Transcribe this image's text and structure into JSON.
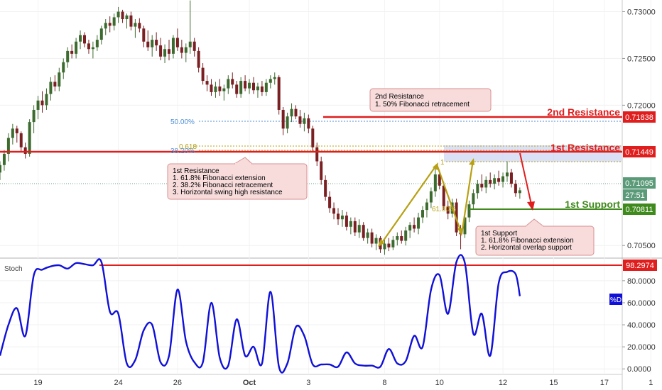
{
  "colors": {
    "up": "#3d6b2f",
    "down": "#7a1f22",
    "resistance": "#e01e1e",
    "support": "#3f8a1c",
    "fib": "#b8a012",
    "fib_blue": "#4f8fd4",
    "stoch": "#1010d8",
    "callout_fill": "#f8dcdc",
    "callout_stroke": "#d78f8f",
    "zone": "#bcc8ee"
  },
  "chart_data": [
    {
      "type": "candlestick",
      "title": "",
      "ylim": [
        0.70365,
        0.73125
      ],
      "y_ticks": [
        {
          "value": 0.73,
          "label": "0.73000"
        },
        {
          "value": 0.725,
          "label": "0.72500"
        },
        {
          "value": 0.72,
          "label": "0.72000"
        },
        {
          "value": 0.705,
          "label": "0.70500"
        }
      ],
      "x_ticks": [
        {
          "value": 4.5,
          "label": "19"
        },
        {
          "value": 14,
          "label": "24"
        },
        {
          "value": 21,
          "label": "26"
        },
        {
          "value": 29.5,
          "label": "Oct"
        },
        {
          "value": 36.5,
          "label": "3"
        },
        {
          "value": 45.5,
          "label": "8"
        },
        {
          "value": 52,
          "label": "10"
        },
        {
          "value": 59.5,
          "label": "12"
        },
        {
          "value": 65.5,
          "label": "15"
        },
        {
          "value": 71.5,
          "label": "17"
        },
        {
          "value": 77,
          "label": "1"
        }
      ],
      "candles": [
        [
          0,
          0.7128,
          0.714,
          0.712,
          0.7136
        ],
        [
          0.5,
          0.7136,
          0.7152,
          0.713,
          0.7148
        ],
        [
          1,
          0.7148,
          0.717,
          0.714,
          0.7165
        ],
        [
          1.5,
          0.7165,
          0.718,
          0.7158,
          0.7175
        ],
        [
          2,
          0.7175,
          0.7178,
          0.716,
          0.717
        ],
        [
          2.5,
          0.717,
          0.7172,
          0.715,
          0.7155
        ],
        [
          3,
          0.7155,
          0.716,
          0.7143,
          0.7148
        ],
        [
          3.5,
          0.7148,
          0.7185,
          0.7145,
          0.7182
        ],
        [
          4,
          0.7182,
          0.72,
          0.717,
          0.7195
        ],
        [
          4.5,
          0.7195,
          0.721,
          0.7185,
          0.7205
        ],
        [
          5,
          0.7205,
          0.7215,
          0.7192,
          0.72
        ],
        [
          5.5,
          0.72,
          0.7218,
          0.7195,
          0.7212
        ],
        [
          6,
          0.7212,
          0.723,
          0.7205,
          0.7225
        ],
        [
          6.5,
          0.7225,
          0.7232,
          0.7215,
          0.722
        ],
        [
          7,
          0.722,
          0.724,
          0.7215,
          0.7235
        ],
        [
          7.5,
          0.7235,
          0.725,
          0.7228,
          0.7246
        ],
        [
          8,
          0.7246,
          0.7262,
          0.724,
          0.7258
        ],
        [
          8.5,
          0.7258,
          0.7265,
          0.725,
          0.7255
        ],
        [
          9,
          0.7255,
          0.7272,
          0.725,
          0.7268
        ],
        [
          9.5,
          0.7268,
          0.728,
          0.726,
          0.7275
        ],
        [
          10,
          0.7275,
          0.7278,
          0.7262,
          0.7266
        ],
        [
          10.5,
          0.7266,
          0.727,
          0.7255,
          0.726
        ],
        [
          11,
          0.726,
          0.7268,
          0.725,
          0.7262
        ],
        [
          11.5,
          0.7262,
          0.7275,
          0.7258,
          0.727
        ],
        [
          12,
          0.727,
          0.7285,
          0.7265,
          0.7282
        ],
        [
          12.5,
          0.7282,
          0.7292,
          0.7275,
          0.7288
        ],
        [
          13,
          0.7288,
          0.7295,
          0.7278,
          0.7285
        ],
        [
          13.5,
          0.7285,
          0.7298,
          0.728,
          0.7294
        ],
        [
          14,
          0.7294,
          0.7305,
          0.7288,
          0.73
        ],
        [
          14.5,
          0.73,
          0.7302,
          0.7288,
          0.7292
        ],
        [
          15,
          0.7292,
          0.7298,
          0.7282,
          0.7296
        ],
        [
          15.5,
          0.7296,
          0.73,
          0.728,
          0.7284
        ],
        [
          16,
          0.7284,
          0.7292,
          0.7272,
          0.7288
        ],
        [
          16.5,
          0.7288,
          0.7293,
          0.7278,
          0.7282
        ],
        [
          17,
          0.7282,
          0.7285,
          0.7262,
          0.7268
        ],
        [
          17.5,
          0.7268,
          0.728,
          0.7258,
          0.7262
        ],
        [
          18,
          0.7262,
          0.7275,
          0.7252,
          0.727
        ],
        [
          18.5,
          0.727,
          0.7278,
          0.7258,
          0.7264
        ],
        [
          19,
          0.7264,
          0.7272,
          0.7248,
          0.7252
        ],
        [
          19.5,
          0.7252,
          0.7265,
          0.7245,
          0.726
        ],
        [
          20,
          0.726,
          0.727,
          0.7248,
          0.7255
        ],
        [
          20.5,
          0.7255,
          0.7275,
          0.725,
          0.7272
        ],
        [
          21,
          0.7272,
          0.7282,
          0.7258,
          0.7262
        ],
        [
          21.5,
          0.7262,
          0.727,
          0.725,
          0.7256
        ],
        [
          22,
          0.7256,
          0.7266,
          0.7246,
          0.7262
        ],
        [
          22.5,
          0.7262,
          0.7312,
          0.7255,
          0.7268
        ],
        [
          23,
          0.7268,
          0.7272,
          0.7252,
          0.7258
        ],
        [
          23.5,
          0.7258,
          0.7262,
          0.7235,
          0.724
        ],
        [
          24,
          0.724,
          0.7245,
          0.7222,
          0.7226
        ],
        [
          24.5,
          0.7226,
          0.7232,
          0.7215,
          0.7222
        ],
        [
          25,
          0.7222,
          0.7228,
          0.721,
          0.7214
        ],
        [
          25.5,
          0.7214,
          0.7225,
          0.7208,
          0.722
        ],
        [
          26,
          0.722,
          0.7228,
          0.721,
          0.7215
        ],
        [
          26.5,
          0.7215,
          0.7222,
          0.7205,
          0.7218
        ],
        [
          27,
          0.7218,
          0.7232,
          0.7212,
          0.7228
        ],
        [
          27.5,
          0.7228,
          0.7235,
          0.7218,
          0.7222
        ],
        [
          28,
          0.7222,
          0.7226,
          0.7208,
          0.7212
        ],
        [
          28.5,
          0.7212,
          0.723,
          0.7208,
          0.7226
        ],
        [
          29,
          0.7226,
          0.7232,
          0.7215,
          0.7218
        ],
        [
          29.5,
          0.7218,
          0.7228,
          0.7212,
          0.7224
        ],
        [
          30,
          0.7224,
          0.723,
          0.7212,
          0.7216
        ],
        [
          30.5,
          0.7216,
          0.7224,
          0.7208,
          0.722
        ],
        [
          31,
          0.722,
          0.7226,
          0.721,
          0.7214
        ],
        [
          31.5,
          0.7214,
          0.7228,
          0.721,
          0.7224
        ],
        [
          32,
          0.7224,
          0.7232,
          0.7218,
          0.7228
        ],
        [
          32.5,
          0.7228,
          0.7235,
          0.7222,
          0.723
        ],
        [
          33,
          0.723,
          0.7232,
          0.719,
          0.7195
        ],
        [
          33.5,
          0.7195,
          0.7198,
          0.7168,
          0.7175
        ],
        [
          34,
          0.7175,
          0.7192,
          0.717,
          0.7188
        ],
        [
          34.5,
          0.7188,
          0.7202,
          0.7182,
          0.7196
        ],
        [
          35,
          0.7196,
          0.72,
          0.7185,
          0.7188
        ],
        [
          35.5,
          0.7188,
          0.7195,
          0.7176,
          0.718
        ],
        [
          36,
          0.718,
          0.7192,
          0.7172,
          0.7186
        ],
        [
          36.5,
          0.7186,
          0.719,
          0.717,
          0.7175
        ],
        [
          37,
          0.7175,
          0.7178,
          0.715,
          0.7155
        ],
        [
          37.5,
          0.7155,
          0.716,
          0.7135,
          0.714
        ],
        [
          38,
          0.714,
          0.7145,
          0.7115,
          0.712
        ],
        [
          38.5,
          0.712,
          0.7125,
          0.7098,
          0.7102
        ],
        [
          39,
          0.7102,
          0.7108,
          0.7085,
          0.709
        ],
        [
          39.5,
          0.709,
          0.7096,
          0.7078,
          0.7084
        ],
        [
          40,
          0.7084,
          0.709,
          0.7072,
          0.7078
        ],
        [
          40.5,
          0.7078,
          0.7088,
          0.707,
          0.7082
        ],
        [
          41,
          0.7082,
          0.7086,
          0.7066,
          0.707
        ],
        [
          41.5,
          0.707,
          0.708,
          0.7062,
          0.7076
        ],
        [
          42,
          0.7076,
          0.708,
          0.706,
          0.7064
        ],
        [
          42.5,
          0.7064,
          0.7078,
          0.7058,
          0.7072
        ],
        [
          43,
          0.7072,
          0.7075,
          0.7055,
          0.7058
        ],
        [
          43.5,
          0.7058,
          0.7068,
          0.7052,
          0.7064
        ],
        [
          44,
          0.7064,
          0.7068,
          0.7048,
          0.7052
        ],
        [
          44.5,
          0.7052,
          0.7062,
          0.7045,
          0.7058
        ],
        [
          45,
          0.7058,
          0.706,
          0.7042,
          0.7046
        ],
        [
          45.5,
          0.7046,
          0.7056,
          0.704,
          0.7052
        ],
        [
          46,
          0.7052,
          0.7058,
          0.7044,
          0.7048
        ],
        [
          46.5,
          0.7048,
          0.706,
          0.7045,
          0.7056
        ],
        [
          47,
          0.7056,
          0.7064,
          0.705,
          0.706
        ],
        [
          47.5,
          0.706,
          0.7066,
          0.7052,
          0.7055
        ],
        [
          48,
          0.7055,
          0.707,
          0.705,
          0.7066
        ],
        [
          48.5,
          0.7066,
          0.7075,
          0.7058,
          0.7072
        ],
        [
          49,
          0.7072,
          0.708,
          0.7064,
          0.7068
        ],
        [
          49.5,
          0.7068,
          0.7085,
          0.7062,
          0.708
        ],
        [
          50,
          0.708,
          0.7092,
          0.7074,
          0.7088
        ],
        [
          50.5,
          0.7088,
          0.71,
          0.708,
          0.7096
        ],
        [
          51,
          0.7096,
          0.7112,
          0.709,
          0.7108
        ],
        [
          51.5,
          0.7108,
          0.7132,
          0.7102,
          0.7126
        ],
        [
          52,
          0.7126,
          0.713,
          0.711,
          0.7114
        ],
        [
          52.5,
          0.7114,
          0.7118,
          0.7088,
          0.7092
        ],
        [
          53,
          0.7092,
          0.7098,
          0.7078,
          0.7084
        ],
        [
          53.5,
          0.7084,
          0.71,
          0.708,
          0.7096
        ],
        [
          54,
          0.7096,
          0.71,
          0.706,
          0.7064
        ],
        [
          54.5,
          0.7064,
          0.7072,
          0.7046,
          0.7062
        ],
        [
          55,
          0.7062,
          0.7082,
          0.7058,
          0.708
        ],
        [
          55.5,
          0.708,
          0.7098,
          0.7075,
          0.7094
        ],
        [
          56,
          0.7094,
          0.711,
          0.7088,
          0.7106
        ],
        [
          56.5,
          0.7106,
          0.712,
          0.71,
          0.7116
        ],
        [
          57,
          0.7116,
          0.7126,
          0.7108,
          0.7112
        ],
        [
          57.5,
          0.7112,
          0.7124,
          0.7106,
          0.712
        ],
        [
          58,
          0.712,
          0.7128,
          0.7112,
          0.7116
        ],
        [
          58.5,
          0.7116,
          0.7126,
          0.711,
          0.7122
        ],
        [
          59,
          0.7122,
          0.713,
          0.7114,
          0.7118
        ],
        [
          59.5,
          0.7118,
          0.7128,
          0.7112,
          0.7124
        ],
        [
          60,
          0.7124,
          0.714,
          0.7118,
          0.7128
        ],
        [
          60.5,
          0.7128,
          0.7132,
          0.7112,
          0.7116
        ],
        [
          61,
          0.7116,
          0.712,
          0.7102,
          0.7106
        ],
        [
          61.5,
          0.7106,
          0.7112,
          0.71,
          0.7109
        ]
      ]
    },
    {
      "type": "line",
      "title": "",
      "ylim": [
        -0.05,
        1.005
      ],
      "y_ticks": [
        {
          "value": 0.8,
          "label": "80.0000"
        },
        {
          "value": 0.6,
          "label": "60.0000"
        },
        {
          "value": 0.4,
          "label": "40.0000"
        },
        {
          "value": 0.2,
          "label": "20.0000"
        },
        {
          "value": 0.0,
          "label": "0.0000"
        }
      ],
      "series": [
        {
          "name": "%D",
          "x": [
            0,
            1,
            2,
            3,
            4,
            5,
            6,
            7,
            8,
            9,
            10,
            11,
            12,
            13,
            14,
            15,
            16,
            17,
            18,
            19,
            20,
            21,
            22,
            23,
            24,
            25,
            26,
            27,
            28,
            29,
            30,
            31,
            32,
            33,
            34,
            35,
            36,
            37,
            38,
            39,
            40,
            41,
            42,
            43,
            44,
            45,
            46,
            47,
            48,
            49,
            50,
            51,
            52,
            53,
            54,
            55,
            56,
            57,
            58,
            59,
            60,
            61,
            61.5
          ],
          "values": [
            0.12,
            0.4,
            0.55,
            0.3,
            0.85,
            0.9,
            0.93,
            0.94,
            0.91,
            0.96,
            0.95,
            0.94,
            0.97,
            0.52,
            0.5,
            0.05,
            0.08,
            0.35,
            0.4,
            0.06,
            0.12,
            0.72,
            0.25,
            0.06,
            0.06,
            0.6,
            0.1,
            0.03,
            0.45,
            0.12,
            0.2,
            0.05,
            0.7,
            0.02,
            0.05,
            0.38,
            0.3,
            0.04,
            0.04,
            0.04,
            0.02,
            0.15,
            0.05,
            0.03,
            0.03,
            0.02,
            0.18,
            0.05,
            0.07,
            0.3,
            0.2,
            0.72,
            0.85,
            0.5,
            0.97,
            0.96,
            0.32,
            0.5,
            0.12,
            0.78,
            0.88,
            0.86,
            0.66
          ]
        }
      ]
    }
  ],
  "labels": {
    "r2_name": "2nd Resistance",
    "r2_price": "0.71838",
    "r1_name": "1st Resistance",
    "r1_price": "0.71449",
    "s1_name": "1st Support",
    "s1_price": "0.70811",
    "current_price": "0.71095",
    "countdown": "27:51",
    "fib_50": "50.00%",
    "fib_382": "38.20%",
    "fib_0618": "0.618",
    "fib_1": "1",
    "fib_618": "61.80%",
    "stoch_title": "Stoch",
    "stoch_max": "98.2974",
    "stoch_legend": "%D"
  },
  "callouts": {
    "r2": {
      "title": "2nd Resistance",
      "lines": [
        "1. 50% Fibonacci retracement"
      ]
    },
    "r1": {
      "title": "1st Resistance",
      "lines": [
        "1. 61.8% Fibonacci extension",
        "2. 38.2% Fibonacci retracement",
        "3. Horizontal swing high resistance"
      ]
    },
    "s1": {
      "title": "1st Support",
      "lines": [
        "1. 61.8% Fibonacci extension",
        "2. Horizontal overlap support"
      ]
    }
  }
}
